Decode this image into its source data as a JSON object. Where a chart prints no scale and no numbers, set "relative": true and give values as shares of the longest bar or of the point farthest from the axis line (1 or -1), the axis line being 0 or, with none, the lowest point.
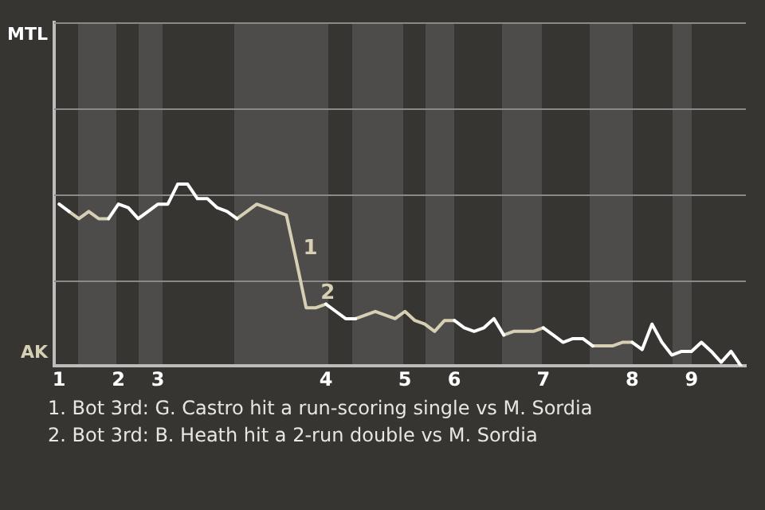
{
  "chart_data": {
    "type": "line",
    "relative": true,
    "categories": [
      "1",
      null,
      null,
      null,
      null,
      null,
      "2",
      null,
      null,
      null,
      "3",
      null,
      null,
      null,
      null,
      null,
      null,
      null,
      null,
      null,
      null,
      null,
      null,
      null,
      null,
      null,
      null,
      "4",
      null,
      null,
      null,
      null,
      null,
      null,
      null,
      "5",
      null,
      null,
      null,
      null,
      "6",
      null,
      null,
      null,
      null,
      null,
      null,
      null,
      null,
      "7",
      null,
      null,
      null,
      null,
      null,
      null,
      null,
      null,
      "8",
      null,
      null,
      null,
      null,
      null,
      "9",
      null,
      null,
      null,
      null,
      null
    ],
    "series": [
      {
        "color": "#ffffff",
        "values": [
          0.89,
          0.85,
          null,
          null,
          null,
          0.81,
          0.89,
          0.87,
          0.81,
          0.85,
          0.89,
          0.89,
          1,
          1,
          0.92,
          0.92,
          0.87,
          0.85,
          0.81,
          null,
          null,
          null,
          null,
          null,
          null,
          null,
          null,
          0.34,
          0.3,
          0.26,
          0.26,
          null,
          null,
          null,
          null,
          null,
          null,
          null,
          null,
          null,
          0.25,
          0.21,
          0.19,
          0.21,
          0.26,
          0.17,
          null,
          null,
          null,
          0.21,
          0.17,
          0.13,
          0.15,
          0.15,
          0.11,
          null,
          null,
          null,
          0.13,
          0.09,
          0.23,
          0.13,
          0.06,
          0.08,
          0.08,
          0.13,
          0.08,
          0.02,
          0.08,
          0
        ]
      },
      {
        "color": "#d6cfb4",
        "values": [
          null,
          0.85,
          0.81,
          0.85,
          0.81,
          0.81,
          null,
          null,
          null,
          null,
          null,
          null,
          null,
          null,
          null,
          null,
          null,
          null,
          0.81,
          0.85,
          0.89,
          0.87,
          0.85,
          0.83,
          0.58,
          0.32,
          0.32,
          0.34,
          null,
          null,
          0.26,
          0.28,
          0.3,
          0.28,
          0.26,
          0.3,
          0.25,
          0.23,
          0.19,
          0.25,
          0.25,
          null,
          null,
          null,
          null,
          0.17,
          0.19,
          0.19,
          0.19,
          0.21,
          null,
          null,
          null,
          null,
          0.11,
          0.11,
          0.11,
          0.13,
          0.13,
          null,
          null,
          null,
          null,
          null,
          null,
          null,
          null,
          null,
          null,
          null
        ]
      }
    ],
    "ref_lines": [
      {
        "axis": "y",
        "value": 0.47,
        "color": "#8a8987"
      },
      {
        "axis": "y",
        "value": 0.94,
        "color": "#8a8987"
      },
      {
        "axis": "y",
        "value": 1.42,
        "color": "#8a8987"
      },
      {
        "axis": "y",
        "value": 1.89,
        "color": "#8a8987"
      }
    ],
    "marker": "none",
    "legend": false,
    "annotations": [
      "MTL",
      "AK",
      "1",
      "2",
      "1. Bot 3rd: G. Castro hit a run-scoring single vs M. Sordia",
      "2. Bot 3rd: B. Heath hit a 2-run double vs M. Sordia"
    ]
  }
}
